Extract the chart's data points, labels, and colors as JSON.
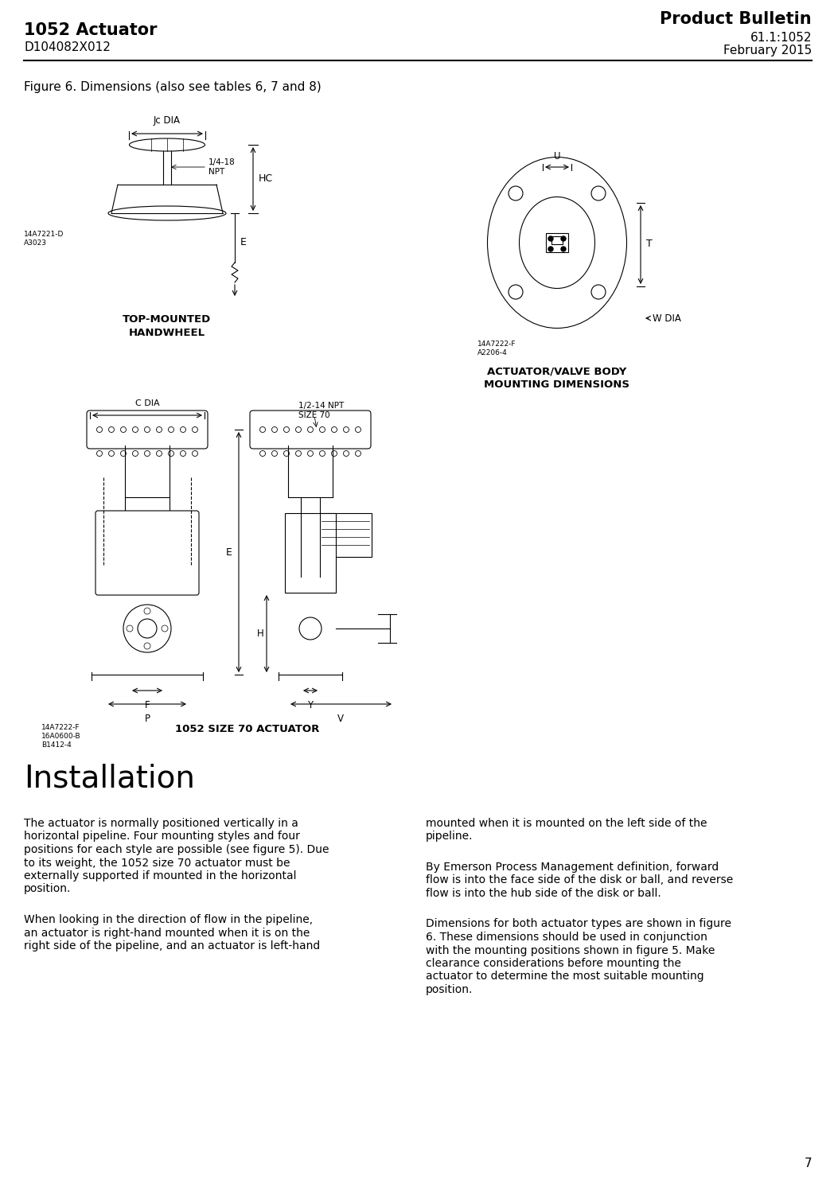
{
  "page_title_left_bold": "1052 Actuator",
  "page_title_left_normal": "D104082X012",
  "page_title_right_bold": "Product Bulletin",
  "page_title_right_normal1": "61.1:1052",
  "page_title_right_normal2": "February 2015",
  "figure_caption": "Figure 6. Dimensions (also see tables 6, 7 and 8)",
  "handwheel_label": "TOP-MOUNTED\nHANDWHEEL",
  "handwheel_ref": "14A7221-D\nA3023",
  "actuator_label": "ACTUATOR/VALVE BODY\nMOUNTING DIMENSIONS",
  "actuator_ref": "14A7222-F\nA2206-4",
  "size70_label": "1052 SIZE 70 ACTUATOR",
  "size70_ref": "14A7222-F\n16A0600-B\nB1412-4",
  "installation_heading": "Installation",
  "para1_lines": [
    "The actuator is normally positioned vertically in a",
    "horizontal pipeline. Four mounting styles and four",
    "positions for each style are possible (see figure 5). Due",
    "to its weight, the 1052 size 70 actuator must be",
    "externally supported if mounted in the horizontal",
    "position."
  ],
  "para2_lines": [
    "When looking in the direction of flow in the pipeline,",
    "an actuator is right-hand mounted when it is on the",
    "right side of the pipeline, and an actuator is left-hand"
  ],
  "para3_lines": [
    "mounted when it is mounted on the left side of the",
    "pipeline."
  ],
  "para4_lines": [
    "By Emerson Process Management definition, forward",
    "flow is into the face side of the disk or ball, and reverse",
    "flow is into the hub side of the disk or ball."
  ],
  "para5_lines": [
    "Dimensions for both actuator types are shown in figure",
    "6. These dimensions should be used in conjunction",
    "with the mounting positions shown in figure 5. Make",
    "clearance considerations before mounting the",
    "actuator to determine the most suitable mounting",
    "position."
  ],
  "page_number": "7",
  "bg_color": "#ffffff",
  "text_color": "#000000",
  "line_color": "#000000"
}
